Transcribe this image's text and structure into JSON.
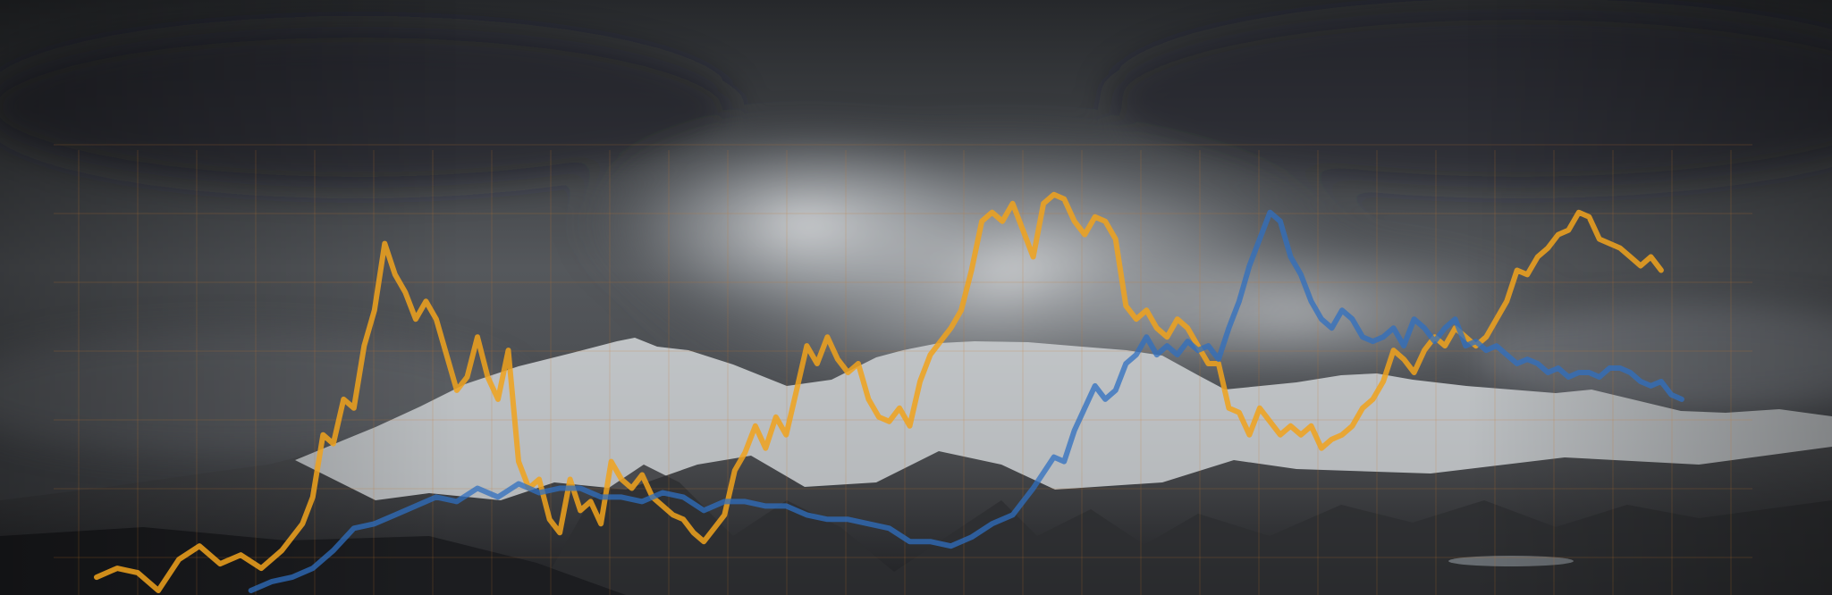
{
  "colors": {
    "sky_dark": "#26282b",
    "sky_mid": "#55585c",
    "cloud_light": "#cfd2d4",
    "mountain_dark": "#25262a",
    "mountain_mid": "#4e4f52",
    "snow": "#d9dcdf",
    "lake": "#9aa3aa",
    "grid": "#c8782a",
    "series_orange": "#f0a21c",
    "series_blue": "#2f6fc0"
  },
  "chart_data": {
    "type": "line",
    "title": "",
    "xlabel": "",
    "ylabel": "",
    "xlim": [
      0,
      160
    ],
    "ylim": [
      0,
      100
    ],
    "grid": true,
    "legend": "none",
    "background": "photo-of-snowy-mountains-under-storm-clouds",
    "series": [
      {
        "color": "#f0a21c",
        "points": [
          [
            0,
            4
          ],
          [
            2,
            6
          ],
          [
            4,
            5
          ],
          [
            6,
            1
          ],
          [
            8,
            8
          ],
          [
            10,
            11
          ],
          [
            12,
            7
          ],
          [
            14,
            9
          ],
          [
            16,
            6
          ],
          [
            18,
            10
          ],
          [
            20,
            16
          ],
          [
            21,
            22
          ],
          [
            22,
            36
          ],
          [
            23,
            34
          ],
          [
            24,
            44
          ],
          [
            25,
            42
          ],
          [
            26,
            56
          ],
          [
            27,
            64
          ],
          [
            28,
            79
          ],
          [
            29,
            72
          ],
          [
            30,
            68
          ],
          [
            31,
            62
          ],
          [
            32,
            66
          ],
          [
            33,
            62
          ],
          [
            34,
            54
          ],
          [
            35,
            46
          ],
          [
            36,
            49
          ],
          [
            37,
            58
          ],
          [
            38,
            49
          ],
          [
            39,
            44
          ],
          [
            40,
            55
          ],
          [
            41,
            30
          ],
          [
            42,
            24
          ],
          [
            43,
            26
          ],
          [
            44,
            17
          ],
          [
            45,
            14
          ],
          [
            46,
            26
          ],
          [
            47,
            19
          ],
          [
            48,
            21
          ],
          [
            49,
            16
          ],
          [
            50,
            30
          ],
          [
            51,
            26
          ],
          [
            52,
            24
          ],
          [
            53,
            27
          ],
          [
            54,
            22
          ],
          [
            55,
            20
          ],
          [
            56,
            18
          ],
          [
            57,
            17
          ],
          [
            58,
            14
          ],
          [
            59,
            12
          ],
          [
            60,
            15
          ],
          [
            61,
            18
          ],
          [
            62,
            28
          ],
          [
            63,
            32
          ],
          [
            64,
            38
          ],
          [
            65,
            33
          ],
          [
            66,
            40
          ],
          [
            67,
            36
          ],
          [
            68,
            46
          ],
          [
            69,
            56
          ],
          [
            70,
            52
          ],
          [
            71,
            58
          ],
          [
            72,
            53
          ],
          [
            73,
            50
          ],
          [
            74,
            52
          ],
          [
            75,
            44
          ],
          [
            76,
            40
          ],
          [
            77,
            39
          ],
          [
            78,
            42
          ],
          [
            79,
            38
          ],
          [
            80,
            48
          ],
          [
            81,
            54
          ],
          [
            82,
            57
          ],
          [
            83,
            60
          ],
          [
            84,
            64
          ],
          [
            85,
            73
          ],
          [
            86,
            84
          ],
          [
            87,
            86
          ],
          [
            88,
            84
          ],
          [
            89,
            88
          ],
          [
            90,
            82
          ],
          [
            91,
            76
          ],
          [
            92,
            88
          ],
          [
            93,
            90
          ],
          [
            94,
            89
          ],
          [
            95,
            84
          ],
          [
            96,
            81
          ],
          [
            97,
            85
          ],
          [
            98,
            84
          ],
          [
            99,
            80
          ],
          [
            100,
            65
          ],
          [
            101,
            62
          ],
          [
            102,
            64
          ],
          [
            103,
            60
          ],
          [
            104,
            58
          ],
          [
            105,
            62
          ],
          [
            106,
            60
          ],
          [
            107,
            56
          ],
          [
            108,
            52
          ],
          [
            109,
            52
          ],
          [
            110,
            42
          ],
          [
            111,
            41
          ],
          [
            112,
            36
          ],
          [
            113,
            42
          ],
          [
            114,
            39
          ],
          [
            115,
            36
          ],
          [
            116,
            38
          ],
          [
            117,
            36
          ],
          [
            118,
            38
          ],
          [
            119,
            33
          ],
          [
            120,
            35
          ],
          [
            121,
            36
          ],
          [
            122,
            38
          ],
          [
            123,
            42
          ],
          [
            124,
            44
          ],
          [
            125,
            48
          ],
          [
            126,
            55
          ],
          [
            127,
            53
          ],
          [
            128,
            50
          ],
          [
            129,
            55
          ],
          [
            130,
            58
          ],
          [
            131,
            56
          ],
          [
            132,
            60
          ],
          [
            133,
            58
          ],
          [
            134,
            56
          ],
          [
            135,
            58
          ],
          [
            136,
            62
          ],
          [
            137,
            66
          ],
          [
            138,
            73
          ],
          [
            139,
            72
          ],
          [
            140,
            76
          ],
          [
            141,
            78
          ],
          [
            142,
            81
          ],
          [
            143,
            82
          ],
          [
            144,
            86
          ],
          [
            145,
            85
          ],
          [
            146,
            80
          ],
          [
            147,
            79
          ],
          [
            148,
            78
          ],
          [
            149,
            76
          ],
          [
            150,
            74
          ],
          [
            151,
            76
          ],
          [
            152,
            73
          ]
        ]
      },
      {
        "color": "#2f6fc0",
        "points": [
          [
            15,
            1
          ],
          [
            17,
            3
          ],
          [
            19,
            4
          ],
          [
            21,
            6
          ],
          [
            23,
            10
          ],
          [
            25,
            15
          ],
          [
            27,
            16
          ],
          [
            29,
            18
          ],
          [
            31,
            20
          ],
          [
            33,
            22
          ],
          [
            35,
            21
          ],
          [
            37,
            24
          ],
          [
            39,
            22
          ],
          [
            41,
            25
          ],
          [
            43,
            23
          ],
          [
            45,
            24
          ],
          [
            47,
            24
          ],
          [
            49,
            22
          ],
          [
            51,
            22
          ],
          [
            53,
            21
          ],
          [
            55,
            23
          ],
          [
            57,
            22
          ],
          [
            59,
            19
          ],
          [
            61,
            21
          ],
          [
            63,
            21
          ],
          [
            65,
            20
          ],
          [
            67,
            20
          ],
          [
            69,
            18
          ],
          [
            71,
            17
          ],
          [
            73,
            17
          ],
          [
            75,
            16
          ],
          [
            77,
            15
          ],
          [
            79,
            12
          ],
          [
            81,
            12
          ],
          [
            83,
            11
          ],
          [
            85,
            13
          ],
          [
            87,
            16
          ],
          [
            89,
            18
          ],
          [
            91,
            24
          ],
          [
            93,
            31
          ],
          [
            94,
            30
          ],
          [
            95,
            37
          ],
          [
            96,
            42
          ],
          [
            97,
            47
          ],
          [
            98,
            44
          ],
          [
            99,
            46
          ],
          [
            100,
            52
          ],
          [
            101,
            54
          ],
          [
            102,
            58
          ],
          [
            103,
            54
          ],
          [
            104,
            56
          ],
          [
            105,
            54
          ],
          [
            106,
            57
          ],
          [
            107,
            55
          ],
          [
            108,
            56
          ],
          [
            109,
            53
          ],
          [
            110,
            60
          ],
          [
            111,
            66
          ],
          [
            112,
            74
          ],
          [
            113,
            80
          ],
          [
            114,
            86
          ],
          [
            115,
            84
          ],
          [
            116,
            76
          ],
          [
            117,
            72
          ],
          [
            118,
            66
          ],
          [
            119,
            62
          ],
          [
            120,
            60
          ],
          [
            121,
            64
          ],
          [
            122,
            62
          ],
          [
            123,
            58
          ],
          [
            124,
            57
          ],
          [
            125,
            58
          ],
          [
            126,
            60
          ],
          [
            127,
            56
          ],
          [
            128,
            62
          ],
          [
            129,
            60
          ],
          [
            130,
            57
          ],
          [
            131,
            60
          ],
          [
            132,
            62
          ],
          [
            133,
            56
          ],
          [
            134,
            57
          ],
          [
            135,
            55
          ],
          [
            136,
            56
          ],
          [
            137,
            54
          ],
          [
            138,
            52
          ],
          [
            139,
            53
          ],
          [
            140,
            52
          ],
          [
            141,
            50
          ],
          [
            142,
            51
          ],
          [
            143,
            49
          ],
          [
            144,
            50
          ],
          [
            145,
            50
          ],
          [
            146,
            49
          ],
          [
            147,
            51
          ],
          [
            148,
            51
          ],
          [
            149,
            50
          ],
          [
            150,
            48
          ],
          [
            151,
            47
          ],
          [
            152,
            48
          ],
          [
            153,
            45
          ],
          [
            154,
            44
          ]
        ]
      }
    ]
  }
}
